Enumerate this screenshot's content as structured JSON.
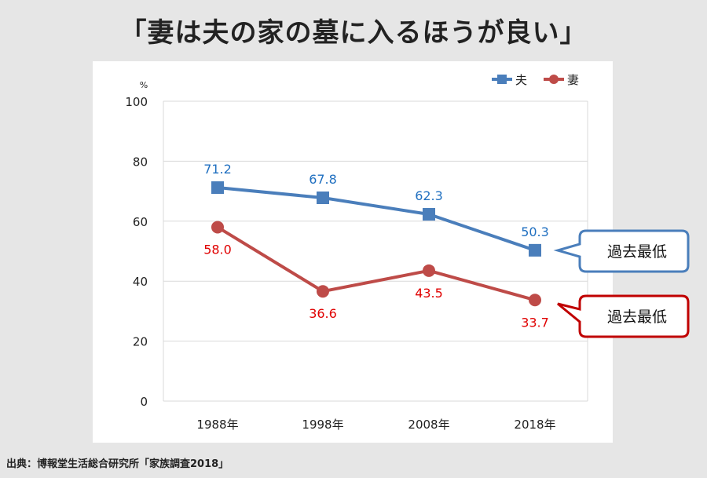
{
  "title": "「妻は夫の家の墓に入るほうが良い」",
  "source": "出典：博報堂生活総合研究所「家族調査2018」",
  "colors": {
    "husband": "#4a7ebb",
    "wife": "#be4b48",
    "husband_label": "#1f6fc0",
    "wife_label": "#e00000",
    "wife_callout_border": "#c00000"
  },
  "chart_data": {
    "type": "line",
    "title": "「妻は夫の家の墓に入るほうが良い」",
    "categories": [
      "1988年",
      "1998年",
      "2008年",
      "2018年"
    ],
    "series": [
      {
        "name": "夫",
        "values": [
          71.2,
          67.8,
          62.3,
          50.3
        ],
        "labels": [
          "71.2",
          "67.8",
          "62.3",
          "50.3"
        ]
      },
      {
        "name": "妻",
        "values": [
          58.0,
          36.6,
          43.5,
          33.7
        ],
        "labels": [
          "58.0",
          "36.6",
          "43.5",
          "33.7"
        ]
      }
    ],
    "ylim": [
      0,
      100
    ],
    "yticks": [
      0,
      20,
      40,
      60,
      80,
      100
    ],
    "ytick_labels": [
      "0",
      "20",
      "40",
      "60",
      "80",
      "100"
    ],
    "yunit": "%",
    "legend": "top-right",
    "annotations": [
      {
        "series": "夫",
        "text": "過去最低"
      },
      {
        "series": "妻",
        "text": "過去最低"
      }
    ]
  }
}
